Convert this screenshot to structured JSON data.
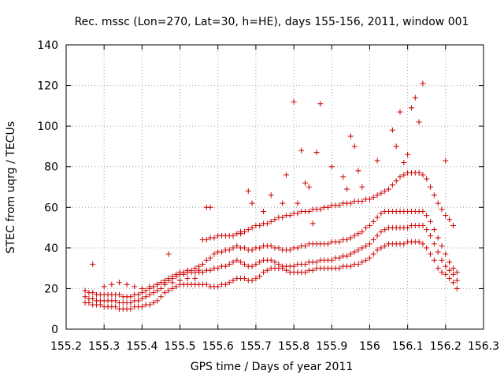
{
  "chart_data": {
    "type": "scatter",
    "title": "Rec. mssc (Lon=270, Lat=30, h=HE), days 155-156, 2011, window 001",
    "xlabel": "GPS time / Days of year 2011",
    "ylabel": "STEC from uqrg / TECUs",
    "xlim": [
      155.2,
      156.3
    ],
    "ylim": [
      0,
      140
    ],
    "xticks": [
      155.2,
      155.3,
      155.4,
      155.5,
      155.6,
      155.7,
      155.8,
      155.9,
      156,
      156.1,
      156.2,
      156.3
    ],
    "xtick_labels": [
      "155.2",
      "155.3",
      "155.4",
      "155.5",
      "155.6",
      "155.7",
      "155.8",
      "155.9",
      "156",
      "156.1",
      "156.2",
      "156.3"
    ],
    "yticks": [
      0,
      20,
      40,
      60,
      80,
      100,
      120,
      140
    ],
    "ytick_labels": [
      "0",
      "20",
      "40",
      "60",
      "80",
      "100",
      "120",
      "140"
    ],
    "grid": true,
    "marker": "plus",
    "color": "#cc0000",
    "series": [
      {
        "x": [
          155.25,
          155.26,
          155.27,
          155.28,
          155.29,
          155.3,
          155.31,
          155.32,
          155.33,
          155.34,
          155.35,
          155.36,
          155.37,
          155.38,
          155.39,
          155.4,
          155.41,
          155.42,
          155.43,
          155.44,
          155.45,
          155.46,
          155.47,
          155.48,
          155.49,
          155.5,
          155.51,
          155.52,
          155.53,
          155.54,
          155.55,
          155.56,
          155.57,
          155.58,
          155.59,
          155.6,
          155.61,
          155.62,
          155.63,
          155.64,
          155.65,
          155.66,
          155.67,
          155.68,
          155.69,
          155.7,
          155.71,
          155.72,
          155.73,
          155.74,
          155.75,
          155.76,
          155.77,
          155.78,
          155.79,
          155.8,
          155.81,
          155.82,
          155.83,
          155.84,
          155.85,
          155.86,
          155.87,
          155.88,
          155.89,
          155.9,
          155.91,
          155.92,
          155.93,
          155.94,
          155.95,
          155.96,
          155.97,
          155.98,
          155.99,
          156.0,
          156.01,
          156.02,
          156.03,
          156.04,
          156.05,
          156.06,
          156.07,
          156.08,
          156.09,
          156.1,
          156.11,
          156.12,
          156.13,
          156.14,
          156.15,
          156.16,
          156.17,
          156.18,
          156.19,
          156.2,
          156.21,
          156.22,
          156.23
        ],
        "y": [
          13,
          13,
          12,
          12,
          12,
          11,
          11,
          11,
          11,
          10,
          10,
          10,
          10,
          11,
          11,
          11,
          12,
          12,
          13,
          14,
          16,
          18,
          19,
          20,
          21,
          22,
          22,
          22,
          22,
          22,
          22,
          22,
          22,
          21,
          21,
          21,
          22,
          22,
          23,
          24,
          25,
          25,
          25,
          24,
          24,
          25,
          26,
          28,
          29,
          30,
          30,
          30,
          30,
          29,
          28,
          28,
          28,
          28,
          28,
          29,
          29,
          30,
          30,
          30,
          30,
          30,
          30,
          30,
          31,
          31,
          31,
          32,
          32,
          33,
          34,
          35,
          37,
          39,
          40,
          41,
          42,
          42,
          42,
          42,
          42,
          43,
          43,
          43,
          43,
          42,
          40,
          37,
          34,
          30,
          28,
          27,
          25,
          23,
          20
        ]
      },
      {
        "x": [
          155.25,
          155.26,
          155.27,
          155.28,
          155.29,
          155.3,
          155.31,
          155.32,
          155.33,
          155.34,
          155.35,
          155.36,
          155.37,
          155.38,
          155.39,
          155.4,
          155.41,
          155.42,
          155.43,
          155.44,
          155.45,
          155.46,
          155.47,
          155.48,
          155.49,
          155.5,
          155.51,
          155.52,
          155.53,
          155.54,
          155.55,
          155.56,
          155.57,
          155.58,
          155.59,
          155.6,
          155.61,
          155.62,
          155.63,
          155.64,
          155.65,
          155.66,
          155.67,
          155.68,
          155.69,
          155.7,
          155.71,
          155.72,
          155.73,
          155.74,
          155.75,
          155.76,
          155.77,
          155.78,
          155.79,
          155.8,
          155.81,
          155.82,
          155.83,
          155.84,
          155.85,
          155.86,
          155.87,
          155.88,
          155.89,
          155.9,
          155.91,
          155.92,
          155.93,
          155.94,
          155.95,
          155.96,
          155.97,
          155.98,
          155.99,
          156.0,
          156.01,
          156.02,
          156.03,
          156.04,
          156.05,
          156.06,
          156.07,
          156.08,
          156.09,
          156.1,
          156.11,
          156.12,
          156.13,
          156.14,
          156.15,
          156.16,
          156.17,
          156.18,
          156.19,
          156.2,
          156.21,
          156.22,
          156.23
        ],
        "y": [
          16,
          15,
          15,
          14,
          14,
          14,
          14,
          14,
          14,
          13,
          13,
          13,
          13,
          14,
          14,
          15,
          16,
          17,
          18,
          19,
          20,
          22,
          24,
          25,
          26,
          27,
          27,
          28,
          28,
          28,
          28,
          28,
          29,
          29,
          30,
          30,
          31,
          31,
          32,
          33,
          34,
          33,
          32,
          31,
          31,
          32,
          33,
          34,
          34,
          34,
          33,
          32,
          31,
          31,
          31,
          31,
          32,
          32,
          32,
          33,
          33,
          33,
          34,
          34,
          34,
          34,
          35,
          35,
          36,
          36,
          37,
          38,
          39,
          40,
          41,
          42,
          44,
          46,
          48,
          49,
          50,
          50,
          50,
          50,
          50,
          50,
          51,
          51,
          51,
          51,
          49,
          46,
          42,
          38,
          34,
          31,
          29,
          27,
          24
        ]
      },
      {
        "x": [
          155.25,
          155.26,
          155.27,
          155.28,
          155.29,
          155.3,
          155.31,
          155.32,
          155.33,
          155.34,
          155.35,
          155.36,
          155.37,
          155.38,
          155.39,
          155.4,
          155.41,
          155.42,
          155.43,
          155.44,
          155.45,
          155.46,
          155.47,
          155.48,
          155.49,
          155.5,
          155.51,
          155.52,
          155.53,
          155.54,
          155.55,
          155.56,
          155.57,
          155.58,
          155.59,
          155.6,
          155.61,
          155.62,
          155.63,
          155.64,
          155.65,
          155.66,
          155.67,
          155.68,
          155.69,
          155.7,
          155.71,
          155.72,
          155.73,
          155.74,
          155.75,
          155.76,
          155.77,
          155.78,
          155.79,
          155.8,
          155.81,
          155.82,
          155.83,
          155.84,
          155.85,
          155.86,
          155.87,
          155.88,
          155.89,
          155.9,
          155.91,
          155.92,
          155.93,
          155.94,
          155.95,
          155.96,
          155.97,
          155.98,
          155.99,
          156.0,
          156.01,
          156.02,
          156.03,
          156.04,
          156.05,
          156.06,
          156.07,
          156.08,
          156.09,
          156.1,
          156.11,
          156.12,
          156.13,
          156.14,
          156.15,
          156.16,
          156.17,
          156.18,
          156.19,
          156.2,
          156.21,
          156.22,
          156.23
        ],
        "y": [
          19,
          18,
          18,
          17,
          17,
          17,
          17,
          17,
          17,
          17,
          16,
          16,
          16,
          17,
          17,
          18,
          19,
          20,
          21,
          22,
          23,
          24,
          25,
          26,
          27,
          28,
          28,
          29,
          29,
          30,
          31,
          32,
          34,
          35,
          37,
          38,
          38,
          39,
          39,
          40,
          41,
          40,
          40,
          39,
          39,
          40,
          40,
          41,
          41,
          41,
          40,
          40,
          39,
          39,
          39,
          40,
          40,
          41,
          41,
          42,
          42,
          42,
          42,
          42,
          42,
          43,
          43,
          43,
          44,
          44,
          45,
          46,
          47,
          48,
          50,
          51,
          53,
          55,
          57,
          58,
          58,
          58,
          58,
          58,
          58,
          58,
          58,
          58,
          58,
          58,
          56,
          53,
          49,
          45,
          41,
          37,
          33,
          30,
          28
        ]
      },
      {
        "x": [
          155.56,
          155.57,
          155.58,
          155.59,
          155.6,
          155.61,
          155.62,
          155.63,
          155.64,
          155.65,
          155.66,
          155.67,
          155.68,
          155.69,
          155.7,
          155.71,
          155.72,
          155.73,
          155.74,
          155.75,
          155.76,
          155.77,
          155.78,
          155.79,
          155.8,
          155.81,
          155.82,
          155.83,
          155.84,
          155.85,
          155.86,
          155.87,
          155.88,
          155.89,
          155.9,
          155.91,
          155.92,
          155.93,
          155.94,
          155.95,
          155.96,
          155.97,
          155.98,
          155.99,
          156.0,
          156.01,
          156.02,
          156.03,
          156.04,
          156.05,
          156.06,
          156.07,
          156.08,
          156.09,
          156.1,
          156.11,
          156.12,
          156.13,
          156.14,
          156.15,
          156.16,
          156.17,
          156.18,
          156.19,
          156.2,
          156.21,
          156.22
        ],
        "y": [
          44,
          44,
          45,
          45,
          46,
          46,
          46,
          46,
          46,
          47,
          47,
          48,
          49,
          50,
          51,
          51,
          52,
          52,
          53,
          54,
          55,
          55,
          56,
          56,
          57,
          57,
          58,
          58,
          58,
          59,
          59,
          59,
          60,
          60,
          61,
          61,
          61,
          62,
          62,
          62,
          63,
          63,
          63,
          64,
          64,
          65,
          66,
          67,
          68,
          69,
          71,
          73,
          75,
          76,
          77,
          77,
          77,
          77,
          76,
          74,
          70,
          66,
          62,
          59,
          56,
          54,
          51
        ]
      },
      {
        "x": [
          155.3,
          155.32,
          155.34,
          155.36,
          155.38,
          155.4,
          155.42,
          155.44,
          155.46,
          155.48,
          155.5,
          155.52,
          155.54
        ],
        "y": [
          21,
          22,
          23,
          22,
          21,
          20,
          21,
          22,
          23,
          23,
          24,
          25,
          25
        ]
      },
      {
        "x": [
          155.57,
          155.58,
          155.66,
          155.68,
          155.69,
          155.72,
          155.74,
          155.77,
          155.78,
          155.8,
          155.81,
          155.82,
          155.83,
          155.84,
          155.85,
          155.86,
          155.87,
          155.9,
          155.93,
          155.94,
          155.95,
          155.96,
          155.97,
          155.98,
          156.02,
          156.06,
          156.07,
          156.08,
          156.09,
          156.1,
          156.11,
          156.12,
          156.13,
          156.14,
          156.2,
          155.27,
          155.47,
          155.55
        ],
        "y": [
          60,
          60,
          48,
          68,
          62,
          58,
          66,
          62,
          76,
          112,
          62,
          88,
          72,
          70,
          52,
          87,
          111,
          80,
          75,
          69,
          95,
          90,
          78,
          70,
          83,
          98,
          90,
          107,
          82,
          86,
          109,
          114,
          102,
          121,
          83,
          32,
          37,
          29
        ]
      }
    ]
  }
}
